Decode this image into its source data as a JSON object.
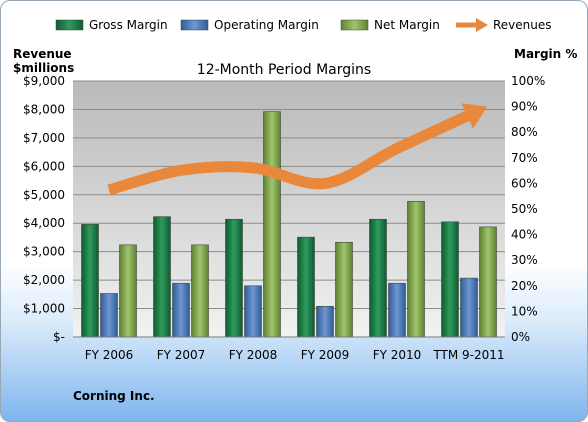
{
  "chart_data": {
    "type": "bar",
    "title": "12-Month Period Margins",
    "categories": [
      "FY 2006",
      "FY 2007",
      "FY 2008",
      "FY 2009",
      "FY 2010",
      "TTM 9-2011"
    ],
    "series": [
      {
        "name": "Gross Margin",
        "axis": "right",
        "values": [
          44,
          47,
          46,
          39,
          46,
          45
        ],
        "color": "#1e7a4a"
      },
      {
        "name": "Operating Margin",
        "axis": "right",
        "values": [
          17,
          21,
          20,
          12,
          21,
          23
        ],
        "color": "#4a74b4"
      },
      {
        "name": "Net Margin",
        "axis": "right",
        "values": [
          36,
          36,
          88,
          37,
          53,
          43
        ],
        "color": "#7fa24c"
      },
      {
        "name": "Revenues",
        "axis": "left",
        "type": "line",
        "values": [
          5170,
          5860,
          5950,
          5400,
          6630,
          7800
        ],
        "color": "#e9873a"
      }
    ],
    "y_left": {
      "label_line1": "Revenue",
      "label_line2": "$millions",
      "ylim": [
        0,
        9000
      ],
      "ticks": [
        "$-",
        "$1,000",
        "$2,000",
        "$3,000",
        "$4,000",
        "$5,000",
        "$6,000",
        "$7,000",
        "$8,000",
        "$9,000"
      ]
    },
    "y_right": {
      "label": "Margin %",
      "ylim": [
        0,
        100
      ],
      "ticks": [
        "0%",
        "10%",
        "20%",
        "30%",
        "40%",
        "50%",
        "60%",
        "70%",
        "80%",
        "90%",
        "100%"
      ]
    },
    "grid": true,
    "legend_position": "top"
  },
  "footer": {
    "company": "Corning Inc."
  }
}
